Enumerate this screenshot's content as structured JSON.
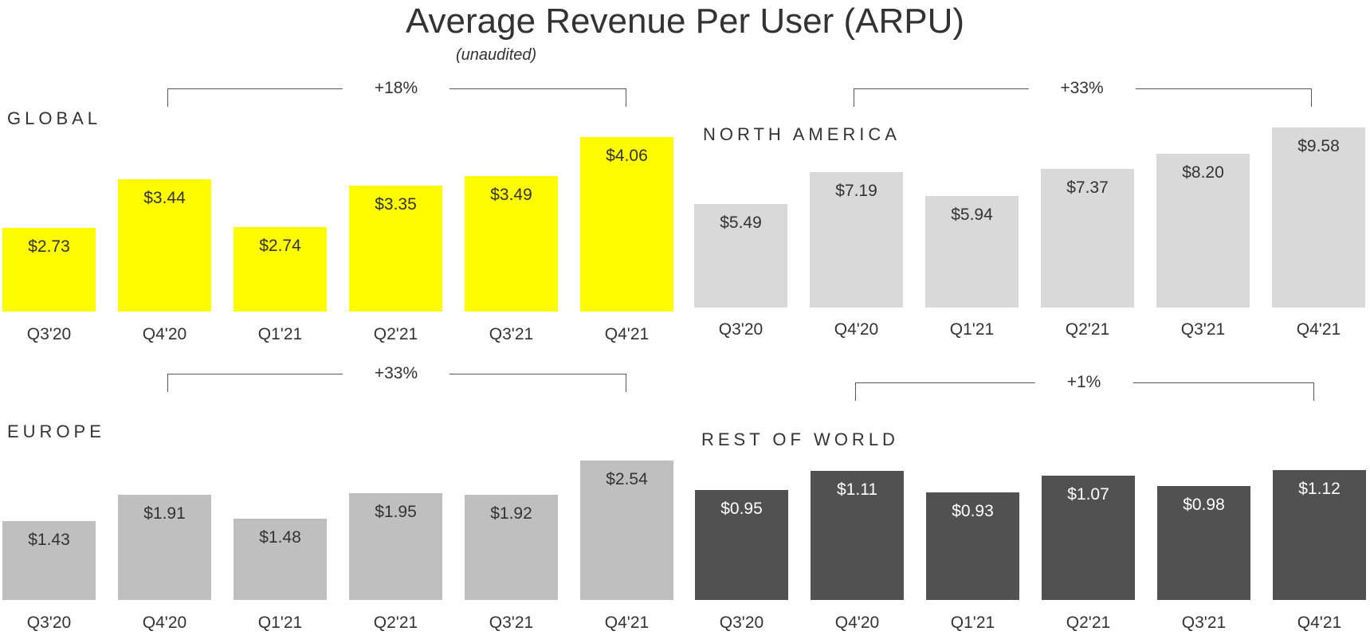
{
  "title": "Average Revenue Per User (ARPU)",
  "subtitle": "(unaudited)",
  "chart_data": [
    {
      "type": "bar",
      "title": "GLOBAL",
      "growth": "+18%",
      "categories": [
        "Q3'20",
        "Q4'20",
        "Q1'21",
        "Q2'21",
        "Q3'21",
        "Q4'21"
      ],
      "values": [
        2.73,
        3.44,
        2.74,
        3.35,
        3.49,
        4.06
      ],
      "labels": [
        "$2.73",
        "$3.44",
        "$2.74",
        "$3.35",
        "$3.49",
        "$4.06"
      ],
      "ylim": [
        1.5,
        4.06
      ],
      "color": "#FFFC00",
      "label_color": "#333333"
    },
    {
      "type": "bar",
      "title": "NORTH AMERICA",
      "growth": "+33%",
      "categories": [
        "Q3'20",
        "Q4'20",
        "Q1'21",
        "Q2'21",
        "Q3'21",
        "Q4'21"
      ],
      "values": [
        5.49,
        7.19,
        5.94,
        7.37,
        8.2,
        9.58
      ],
      "labels": [
        "$5.49",
        "$7.19",
        "$5.94",
        "$7.37",
        "$8.20",
        "$9.58"
      ],
      "ylim": [
        0,
        9.58
      ],
      "color": "#D9D9D9",
      "label_color": "#333333"
    },
    {
      "type": "bar",
      "title": "EUROPE",
      "growth": "+33%",
      "categories": [
        "Q3'20",
        "Q4'20",
        "Q1'21",
        "Q2'21",
        "Q3'21",
        "Q4'21"
      ],
      "values": [
        1.43,
        1.91,
        1.48,
        1.95,
        1.92,
        2.54
      ],
      "labels": [
        "$1.43",
        "$1.91",
        "$1.48",
        "$1.95",
        "$1.92",
        "$2.54"
      ],
      "ylim": [
        0,
        2.54
      ],
      "color": "#BFBFBF",
      "label_color": "#333333"
    },
    {
      "type": "bar",
      "title": "REST OF WORLD",
      "growth": "+1%",
      "categories": [
        "Q3'20",
        "Q4'20",
        "Q1'21",
        "Q2'21",
        "Q3'21",
        "Q4'21"
      ],
      "values": [
        0.95,
        1.11,
        0.93,
        1.07,
        0.98,
        1.12
      ],
      "labels": [
        "$0.95",
        "$1.11",
        "$0.93",
        "$1.07",
        "$0.98",
        "$1.12"
      ],
      "ylim": [
        0,
        1.12
      ],
      "color": "#515151",
      "label_color": "#FFFFFF"
    }
  ]
}
